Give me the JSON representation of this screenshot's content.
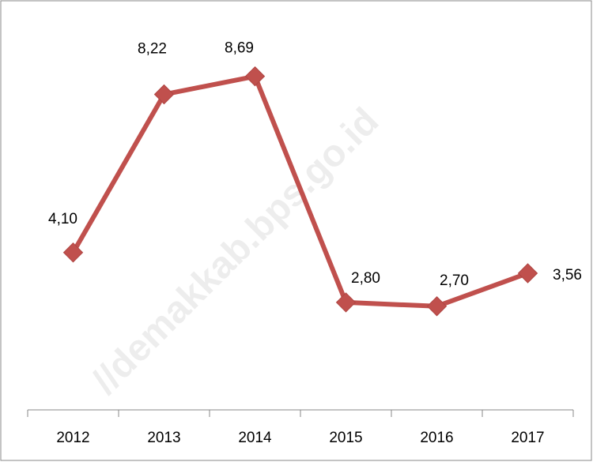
{
  "chart_data": {
    "type": "line",
    "categories": [
      "2012",
      "2013",
      "2014",
      "2015",
      "2016",
      "2017"
    ],
    "series": [
      {
        "color": "#c0504d",
        "values": [
          4.1,
          8.22,
          8.69,
          2.8,
          2.7,
          3.56
        ],
        "value_labels": [
          "4,10",
          "8,22",
          "8,69",
          "2,80",
          "2,70",
          "3,56"
        ]
      }
    ],
    "ylim": [
      0,
      10
    ],
    "watermark": "//demakkab.bps.go.id"
  }
}
